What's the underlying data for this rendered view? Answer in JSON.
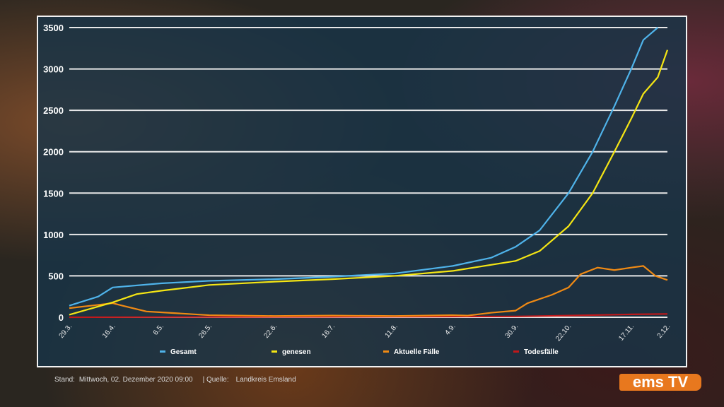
{
  "chart_data": {
    "type": "line",
    "ylim": [
      0,
      3500
    ],
    "yticks": [
      0,
      500,
      1000,
      1500,
      2000,
      2500,
      3000,
      3500
    ],
    "xlim": [
      "2020-03-29",
      "2020-12-02"
    ],
    "xtick_labels": [
      [
        "2020-03-29",
        "29.3."
      ],
      [
        "2020-04-16",
        "16.4."
      ],
      [
        "2020-05-06",
        "6.5."
      ],
      [
        "2020-05-26",
        "26.5."
      ],
      [
        "2020-06-22",
        "22.6."
      ],
      [
        "2020-07-16",
        "16.7."
      ],
      [
        "2020-08-11",
        "11.8."
      ],
      [
        "2020-09-04",
        "4.9."
      ],
      [
        "2020-09-30",
        "30.9."
      ],
      [
        "2020-10-22",
        "22.10."
      ],
      [
        "2020-11-17",
        "17.11."
      ],
      [
        "2020-12-02",
        "2.12."
      ]
    ],
    "grid": true,
    "legend_position": "bottom",
    "series": [
      {
        "name": "Gesamt",
        "color": "#4fb3ea",
        "points": [
          [
            "2020-03-29",
            140
          ],
          [
            "2020-04-10",
            250
          ],
          [
            "2020-04-16",
            360
          ],
          [
            "2020-05-06",
            410
          ],
          [
            "2020-05-26",
            440
          ],
          [
            "2020-06-22",
            460
          ],
          [
            "2020-07-16",
            490
          ],
          [
            "2020-08-11",
            530
          ],
          [
            "2020-09-04",
            620
          ],
          [
            "2020-09-20",
            720
          ],
          [
            "2020-09-30",
            850
          ],
          [
            "2020-10-10",
            1050
          ],
          [
            "2020-10-22",
            1500
          ],
          [
            "2020-11-01",
            2000
          ],
          [
            "2020-11-10",
            2550
          ],
          [
            "2020-11-17",
            3000
          ],
          [
            "2020-11-22",
            3350
          ],
          [
            "2020-11-28",
            3500
          ]
        ]
      },
      {
        "name": "genesen",
        "color": "#f5e614",
        "points": [
          [
            "2020-03-29",
            30
          ],
          [
            "2020-04-16",
            180
          ],
          [
            "2020-04-26",
            280
          ],
          [
            "2020-05-06",
            320
          ],
          [
            "2020-05-26",
            390
          ],
          [
            "2020-06-22",
            430
          ],
          [
            "2020-07-16",
            460
          ],
          [
            "2020-08-11",
            500
          ],
          [
            "2020-09-04",
            560
          ],
          [
            "2020-09-30",
            680
          ],
          [
            "2020-10-10",
            800
          ],
          [
            "2020-10-22",
            1100
          ],
          [
            "2020-11-01",
            1500
          ],
          [
            "2020-11-10",
            2000
          ],
          [
            "2020-11-17",
            2400
          ],
          [
            "2020-11-22",
            2700
          ],
          [
            "2020-11-28",
            2900
          ],
          [
            "2020-12-02",
            3230
          ]
        ]
      },
      {
        "name": "Aktuelle Fälle",
        "color": "#f08a14",
        "points": [
          [
            "2020-03-29",
            110
          ],
          [
            "2020-04-10",
            150
          ],
          [
            "2020-04-16",
            170
          ],
          [
            "2020-04-20",
            140
          ],
          [
            "2020-04-30",
            70
          ],
          [
            "2020-05-06",
            60
          ],
          [
            "2020-05-26",
            25
          ],
          [
            "2020-06-22",
            15
          ],
          [
            "2020-07-16",
            20
          ],
          [
            "2020-08-11",
            15
          ],
          [
            "2020-09-04",
            25
          ],
          [
            "2020-09-10",
            20
          ],
          [
            "2020-09-20",
            55
          ],
          [
            "2020-09-30",
            80
          ],
          [
            "2020-10-05",
            170
          ],
          [
            "2020-10-15",
            270
          ],
          [
            "2020-10-22",
            360
          ],
          [
            "2020-10-27",
            520
          ],
          [
            "2020-11-03",
            600
          ],
          [
            "2020-11-10",
            570
          ],
          [
            "2020-11-17",
            600
          ],
          [
            "2020-11-22",
            620
          ],
          [
            "2020-11-27",
            500
          ],
          [
            "2020-12-02",
            450
          ]
        ]
      },
      {
        "name": "Todesfälle",
        "color": "#c0181a",
        "points": [
          [
            "2020-03-29",
            0
          ],
          [
            "2020-09-30",
            10
          ],
          [
            "2020-10-22",
            20
          ],
          [
            "2020-11-17",
            35
          ],
          [
            "2020-12-02",
            40
          ]
        ]
      }
    ]
  },
  "footer": {
    "stand_label": "Stand:",
    "stand_value": "Mittwoch, 02. Dezember 2020 09:00",
    "source_label": "| Quelle:",
    "source_value": "Landkreis Emsland"
  },
  "logo": {
    "text": "ems TV",
    "color": "#e8781e"
  }
}
